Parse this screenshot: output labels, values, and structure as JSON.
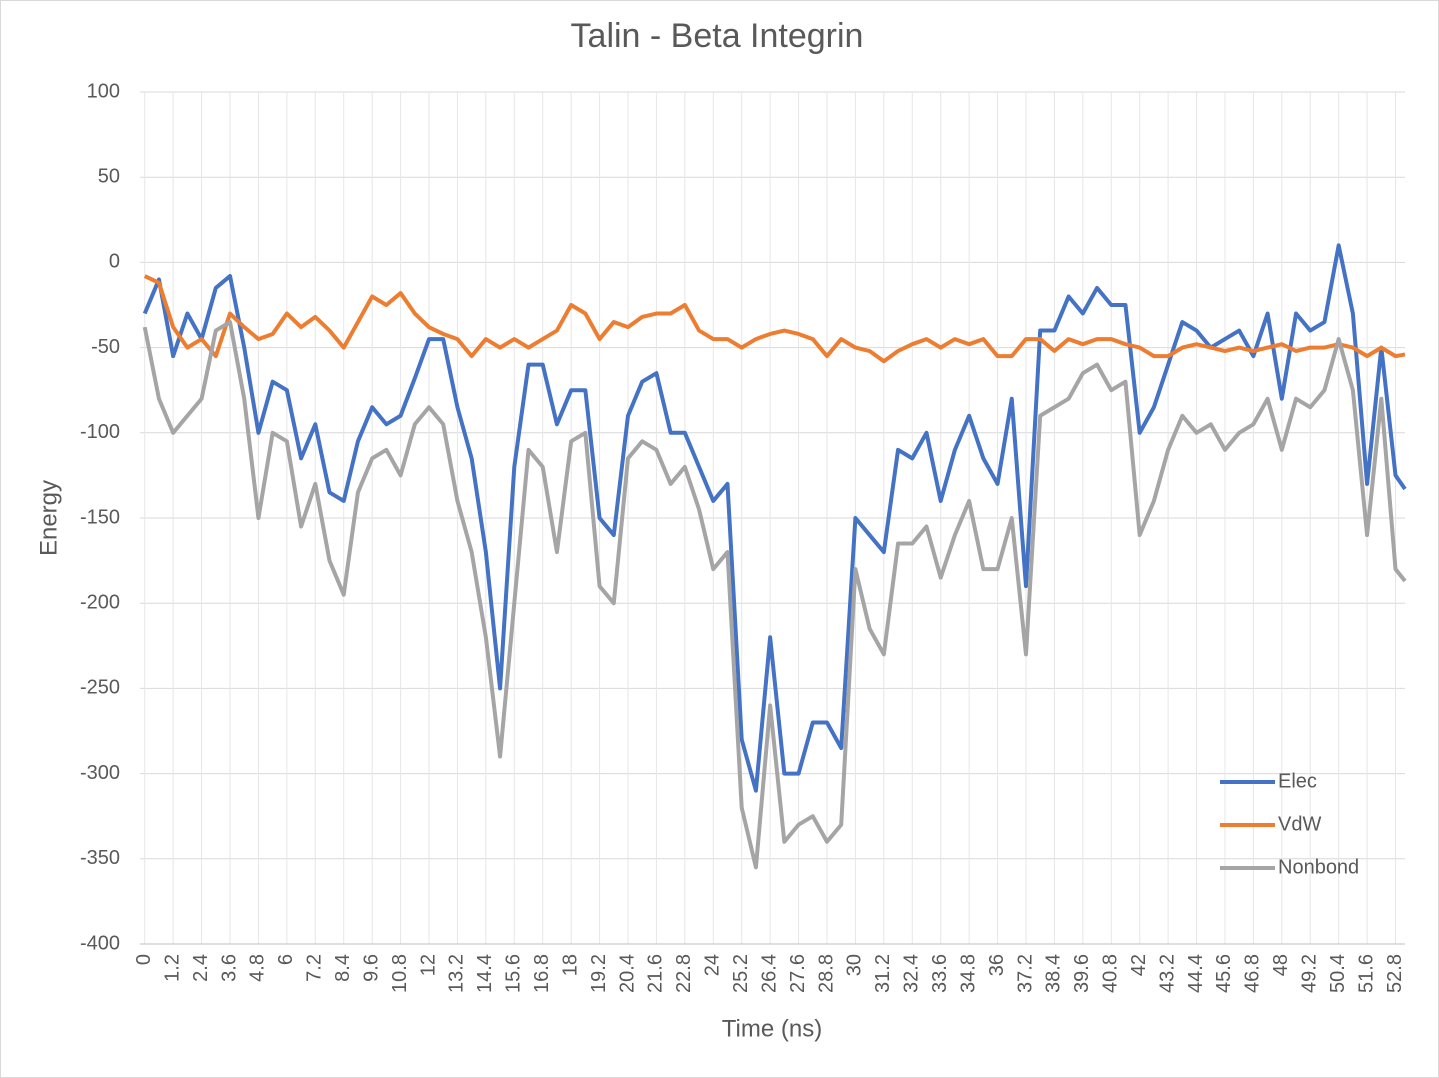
{
  "chart_data": {
    "type": "line",
    "title": "Talin - Beta Integrin",
    "x_label": "Time (ns)",
    "y_label": "Energy",
    "x": [
      0,
      0.6,
      1.2,
      1.8,
      2.4,
      3.0,
      3.6,
      4.2,
      4.8,
      5.4,
      6.0,
      6.6,
      7.2,
      7.8,
      8.4,
      9.0,
      9.6,
      10.2,
      10.8,
      11.4,
      12.0,
      12.6,
      13.2,
      13.8,
      14.4,
      15.0,
      15.6,
      16.2,
      16.8,
      17.4,
      18.0,
      18.6,
      19.2,
      19.8,
      20.4,
      21.0,
      21.6,
      22.2,
      22.8,
      23.4,
      24.0,
      24.6,
      25.2,
      25.8,
      26.4,
      27.0,
      27.6,
      28.2,
      28.8,
      29.4,
      30.0,
      30.6,
      31.2,
      31.8,
      32.4,
      33.0,
      33.6,
      34.2,
      34.8,
      35.4,
      36.0,
      36.6,
      37.2,
      37.8,
      38.4,
      39.0,
      39.6,
      40.2,
      40.8,
      41.4,
      42.0,
      42.6,
      43.2,
      43.8,
      44.4,
      45.0,
      45.6,
      46.2,
      46.8,
      47.4,
      48.0,
      48.6,
      49.2,
      49.8,
      50.4,
      51.0,
      51.6,
      52.2,
      52.8,
      53.2
    ],
    "series": [
      {
        "name": "Elec",
        "color": "#4472c4",
        "values": [
          -30,
          -10,
          -55,
          -30,
          -45,
          -15,
          -8,
          -50,
          -100,
          -70,
          -75,
          -115,
          -95,
          -135,
          -140,
          -105,
          -85,
          -95,
          -90,
          -68,
          -45,
          -45,
          -85,
          -115,
          -170,
          -250,
          -120,
          -60,
          -60,
          -95,
          -75,
          -75,
          -150,
          -160,
          -90,
          -70,
          -65,
          -100,
          -100,
          -120,
          -140,
          -130,
          -280,
          -310,
          -220,
          -300,
          -300,
          -270,
          -270,
          -285,
          -150,
          -160,
          -170,
          -110,
          -115,
          -100,
          -140,
          -110,
          -90,
          -115,
          -130,
          -80,
          -190,
          -40,
          -40,
          -20,
          -30,
          -15,
          -25,
          -25,
          -100,
          -85,
          -60,
          -35,
          -40,
          -50,
          -45,
          -40,
          -55,
          -30,
          -80,
          -30,
          -40,
          -35,
          10,
          -30,
          -130,
          -50,
          -125,
          -133
        ]
      },
      {
        "name": "VdW",
        "color": "#ed7d31",
        "values": [
          -8,
          -12,
          -38,
          -50,
          -45,
          -55,
          -30,
          -38,
          -45,
          -42,
          -30,
          -38,
          -32,
          -40,
          -50,
          -35,
          -20,
          -25,
          -18,
          -30,
          -38,
          -42,
          -45,
          -55,
          -45,
          -50,
          -45,
          -50,
          -45,
          -40,
          -25,
          -30,
          -45,
          -35,
          -38,
          -32,
          -30,
          -30,
          -25,
          -40,
          -45,
          -45,
          -50,
          -45,
          -42,
          -40,
          -42,
          -45,
          -55,
          -45,
          -50,
          -52,
          -58,
          -52,
          -48,
          -45,
          -50,
          -45,
          -48,
          -45,
          -55,
          -55,
          -45,
          -45,
          -52,
          -45,
          -48,
          -45,
          -45,
          -48,
          -50,
          -55,
          -55,
          -50,
          -48,
          -50,
          -52,
          -50,
          -52,
          -50,
          -48,
          -52,
          -50,
          -50,
          -48,
          -50,
          -55,
          -50,
          -55,
          -54
        ]
      },
      {
        "name": "Nonbond",
        "color": "#a5a5a5",
        "values": [
          -38,
          -80,
          -100,
          -90,
          -80,
          -40,
          -35,
          -80,
          -150,
          -100,
          -105,
          -155,
          -130,
          -175,
          -195,
          -135,
          -115,
          -110,
          -125,
          -95,
          -85,
          -95,
          -140,
          -170,
          -220,
          -290,
          -200,
          -110,
          -120,
          -170,
          -105,
          -100,
          -190,
          -200,
          -115,
          -105,
          -110,
          -130,
          -120,
          -145,
          -180,
          -170,
          -320,
          -355,
          -260,
          -340,
          -330,
          -325,
          -340,
          -330,
          -180,
          -215,
          -230,
          -165,
          -165,
          -155,
          -185,
          -160,
          -140,
          -180,
          -180,
          -150,
          -230,
          -90,
          -85,
          -80,
          -65,
          -60,
          -75,
          -70,
          -160,
          -140,
          -110,
          -90,
          -100,
          -95,
          -110,
          -100,
          -95,
          -80,
          -110,
          -80,
          -85,
          -75,
          -45,
          -75,
          -160,
          -80,
          -180,
          -187
        ]
      }
    ],
    "xlim": [
      -0.2,
      53.2
    ],
    "ylim": [
      -400,
      100
    ],
    "xticks": [
      0,
      1.2,
      2.4,
      3.6,
      4.8,
      6,
      7.2,
      8.4,
      9.6,
      10.8,
      12,
      13.2,
      14.4,
      15.6,
      16.8,
      18,
      19.2,
      20.4,
      21.6,
      22.8,
      24,
      25.2,
      26.4,
      27.6,
      28.8,
      30,
      31.2,
      32.4,
      33.6,
      34.8,
      36,
      37.2,
      38.4,
      39.6,
      40.8,
      42,
      43.2,
      44.4,
      45.6,
      46.8,
      48,
      49.2,
      50.4,
      51.6,
      52.8
    ],
    "yticks": [
      -400,
      -350,
      -300,
      -250,
      -200,
      -150,
      -100,
      -50,
      0,
      50,
      100
    ],
    "grid": true,
    "legend": "lower right"
  }
}
